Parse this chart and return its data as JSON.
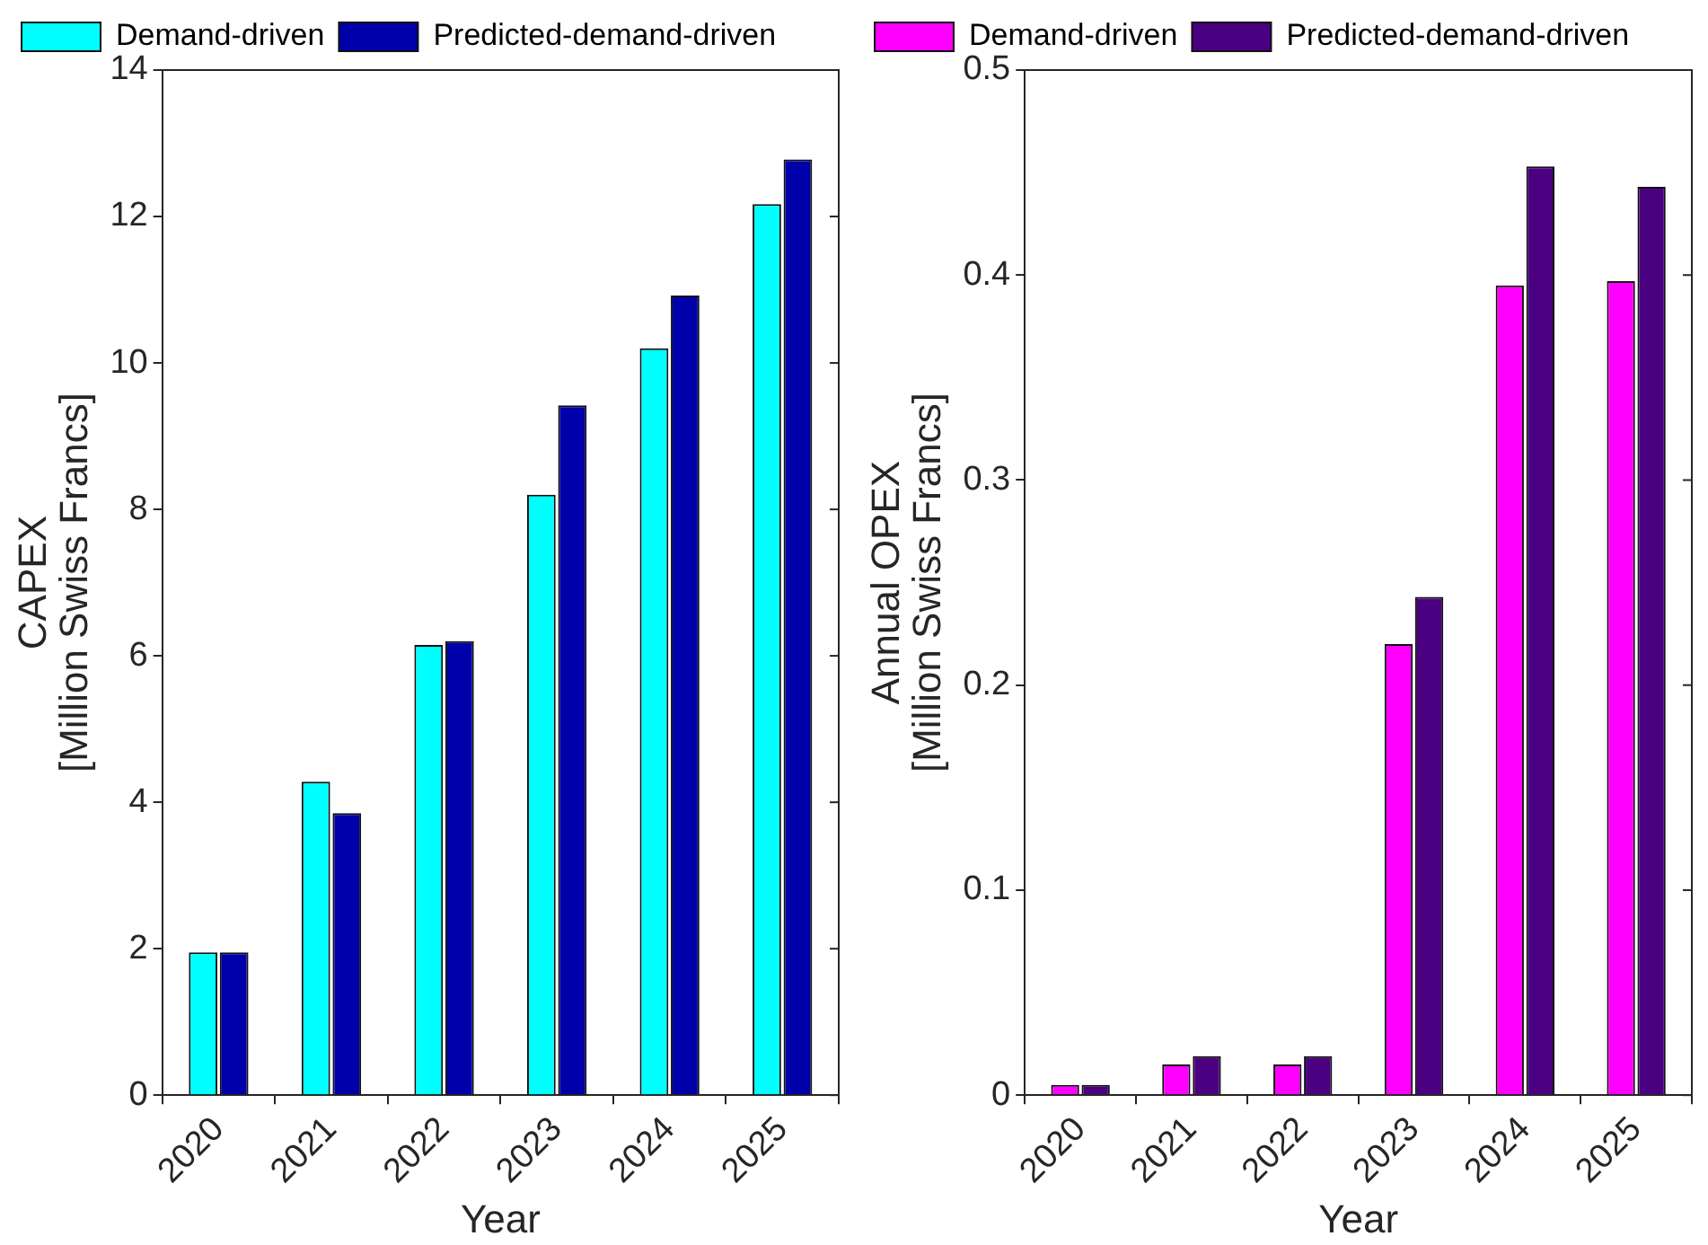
{
  "chart_data": [
    {
      "type": "bar",
      "categories": [
        "2020",
        "2021",
        "2022",
        "2023",
        "2024",
        "2025"
      ],
      "xlabel": "Year",
      "ylabel": "CAPEX\n[Million Swiss Francs]",
      "series": [
        {
          "name": "Demand-driven",
          "color": "#00ffff",
          "values": [
            1.95,
            4.28,
            6.15,
            8.2,
            10.2,
            12.17
          ]
        },
        {
          "name": "Predicted-demand-driven",
          "color": "#0000aa",
          "values": [
            1.95,
            3.85,
            6.2,
            9.42,
            10.92,
            12.78
          ]
        }
      ],
      "ylim": [
        0,
        14
      ],
      "yticks": [
        0,
        2,
        4,
        6,
        8,
        10,
        12,
        14
      ],
      "grid": false,
      "legend": "top left"
    },
    {
      "type": "bar",
      "categories": [
        "2020",
        "2021",
        "2022",
        "2023",
        "2024",
        "2025"
      ],
      "xlabel": "Year",
      "ylabel": "Annual OPEX\n[Million Swiss Francs]",
      "series": [
        {
          "name": "Demand-driven",
          "color": "#ff00ff",
          "values": [
            0.005,
            0.015,
            0.015,
            0.22,
            0.395,
            0.397
          ]
        },
        {
          "name": "Predicted-demand-driven",
          "color": "#4b0082",
          "values": [
            0.005,
            0.019,
            0.019,
            0.243,
            0.453,
            0.443
          ]
        }
      ],
      "ylim": [
        0,
        0.5
      ],
      "yticks": [
        0,
        0.1,
        0.2,
        0.3,
        0.4,
        0.5
      ],
      "grid": false,
      "legend": "top left"
    }
  ]
}
